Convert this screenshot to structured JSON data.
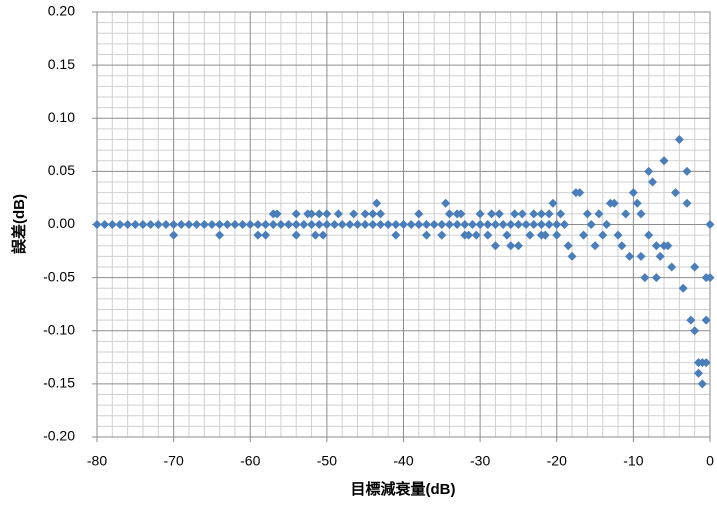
{
  "chart_data": {
    "type": "scatter",
    "xlabel": "目標減衰量(dB)",
    "ylabel": "誤差(dB)",
    "xlim": [
      -80,
      0
    ],
    "ylim": [
      -0.2,
      0.2
    ],
    "xticks": [
      -80,
      -70,
      -60,
      -50,
      -40,
      -30,
      -20,
      -10,
      0
    ],
    "yticks": [
      {
        "value": 0.2,
        "label": "0.20"
      },
      {
        "value": 0.15,
        "label": "0.15"
      },
      {
        "value": 0.1,
        "label": "0.10"
      },
      {
        "value": 0.05,
        "label": "0.05"
      },
      {
        "value": 0,
        "label": "0.00"
      },
      {
        "value": -0.05,
        "label": "-0.05"
      },
      {
        "value": -0.1,
        "label": "-0.10"
      },
      {
        "value": -0.15,
        "label": "-0.15"
      },
      {
        "value": -0.2,
        "label": "-0.20"
      }
    ],
    "grid": true,
    "minor_grid": true,
    "series": [
      {
        "color": "#4a7ebb",
        "x": [
          -80,
          -79,
          -78,
          -77,
          -76,
          -75,
          -74,
          -73,
          -72,
          -71,
          -70,
          -69,
          -68,
          -67,
          -66,
          -65,
          -64,
          -63,
          -62,
          -61,
          -60,
          -59,
          -58,
          -57,
          -56,
          -55,
          -54,
          -53,
          -52,
          -51,
          -50,
          -49,
          -48,
          -47,
          -46,
          -45,
          -44,
          -43,
          -42,
          -41,
          -40,
          -39,
          -38,
          -37,
          -36,
          -35,
          -34,
          -33,
          -32,
          -31,
          -30,
          -29,
          -28,
          -27,
          -26,
          -25,
          -24,
          -23,
          -22,
          -21,
          -20
        ],
        "values": [
          0,
          0,
          0,
          0,
          0,
          0,
          0,
          0,
          0,
          0,
          0,
          0,
          0,
          0,
          0,
          0,
          0,
          0,
          0,
          0,
          0,
          0,
          0,
          0,
          0,
          0,
          0,
          0,
          0,
          0,
          0,
          0,
          0,
          0,
          0,
          0,
          0,
          0,
          0,
          0,
          0,
          0,
          0,
          0,
          0,
          0,
          0,
          0,
          0,
          0,
          0,
          0,
          0,
          0,
          0,
          0,
          0,
          0,
          0,
          0,
          0
        ]
      },
      {
        "color": "#4a7ebb",
        "x": [
          -70,
          -64,
          -59,
          -58,
          -57,
          -56.5,
          -54,
          -54,
          -52.5,
          -52,
          -51.5,
          -51,
          -50.5,
          -50,
          -48.5,
          -46.5,
          -45,
          -44,
          -43.5,
          -43,
          -41,
          -38,
          -37,
          -35,
          -34.5,
          -34,
          -33,
          -32.5,
          -32,
          -31.5,
          -30.5,
          -30,
          -29,
          -28.5,
          -28,
          -27.5,
          -26.5,
          -25.5,
          -25,
          -24.5,
          -23.5,
          -23,
          -22,
          -21.5,
          -21,
          -20.5,
          -20,
          -19.5,
          -19,
          -18.5,
          -18,
          -17.5,
          -17,
          -16.5,
          -16,
          -15.5,
          -15,
          -14.5,
          -14,
          -13.5,
          -13,
          -12.5,
          -12,
          -11.5,
          -11,
          -10.5,
          -10,
          -9.5,
          -9,
          -8.5,
          -8,
          -7.5,
          -7,
          -6.5,
          -6,
          -5.5,
          -5,
          -4.5,
          -4,
          -3.5,
          -3,
          -2.5,
          -2,
          -1.5,
          -1,
          -0.5,
          0,
          0,
          -0.5,
          -1.5,
          -2,
          -3,
          -6,
          -8,
          -9,
          -22,
          -26,
          -1,
          -0.5,
          -7
        ],
        "values": [
          -0.01,
          -0.01,
          -0.01,
          -0.01,
          0.01,
          0.01,
          0.01,
          -0.01,
          0.01,
          0.01,
          -0.01,
          0.01,
          -0.01,
          0.01,
          0.01,
          0.01,
          0.01,
          0.01,
          0.02,
          0.01,
          -0.01,
          0.01,
          -0.01,
          -0.01,
          0.02,
          0.01,
          0.01,
          0.01,
          -0.01,
          -0.01,
          -0.01,
          0.01,
          -0.01,
          0.01,
          -0.02,
          0.01,
          -0.01,
          0.01,
          -0.02,
          0.01,
          -0.01,
          0.01,
          0.01,
          -0.01,
          0.01,
          0.02,
          -0.01,
          0.01,
          0,
          -0.02,
          -0.03,
          0.03,
          0.03,
          -0.01,
          0.01,
          0,
          -0.02,
          0.01,
          -0.01,
          0,
          0.02,
          0.02,
          -0.01,
          -0.02,
          0.01,
          -0.03,
          0.03,
          0.02,
          -0.03,
          -0.05,
          0.05,
          0.04,
          -0.05,
          -0.03,
          0.06,
          -0.02,
          -0.04,
          0.03,
          0.08,
          -0.06,
          0.05,
          -0.09,
          -0.1,
          -0.14,
          -0.15,
          -0.13,
          -0.05,
          0,
          -0.09,
          -0.13,
          -0.04,
          0.02,
          -0.02,
          -0.01,
          0.01,
          -0.01,
          -0.02,
          -0.13,
          -0.05,
          -0.02
        ]
      }
    ]
  }
}
